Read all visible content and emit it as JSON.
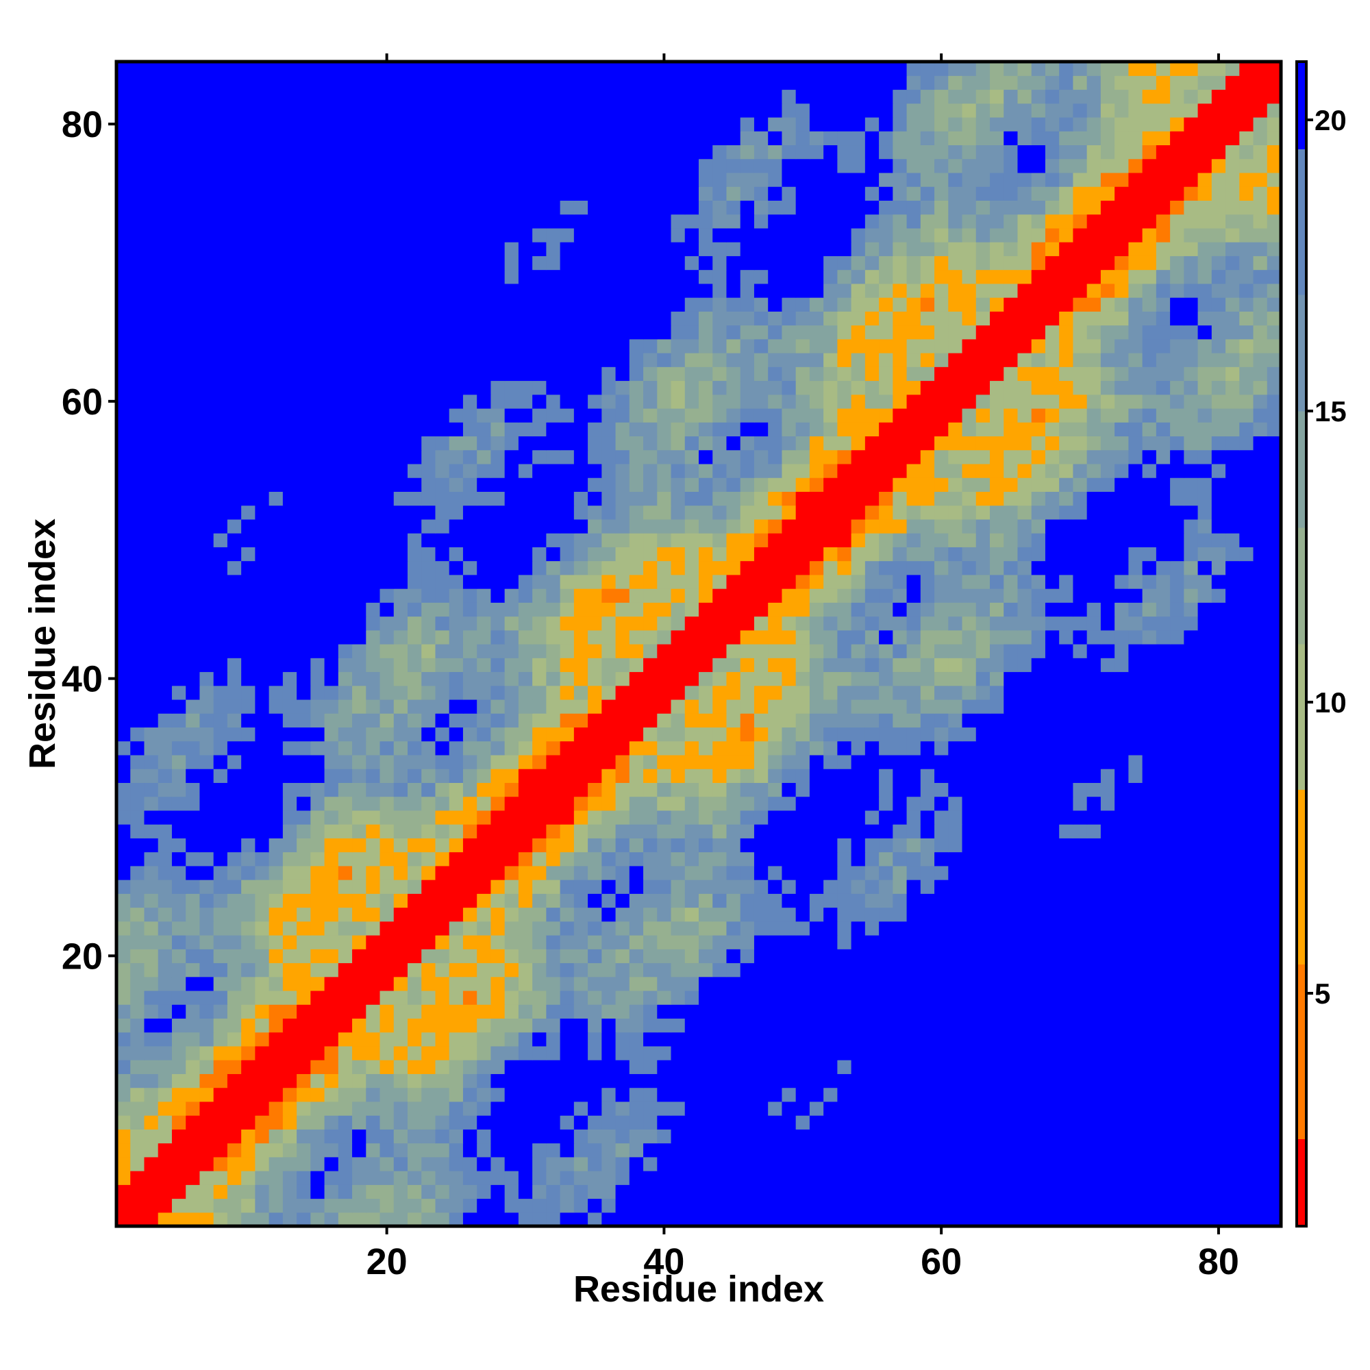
{
  "chart_data": {
    "type": "heatmap",
    "title": "",
    "xlabel": "Residue index",
    "ylabel": "Residue index",
    "n_residues": 84,
    "xlim": [
      1,
      84
    ],
    "ylim": [
      1,
      84
    ],
    "x_ticks": [
      20,
      40,
      60,
      80
    ],
    "y_ticks": [
      20,
      40,
      60,
      80
    ],
    "colorbar": {
      "range": [
        1,
        21
      ],
      "ticks": [
        5,
        10,
        15,
        20
      ],
      "placement": "right"
    },
    "color_scale": [
      {
        "max": 2.5,
        "color": "#ff0000"
      },
      {
        "max": 5.5,
        "color": "#ff7a00"
      },
      {
        "max": 8.5,
        "color": "#ffa500"
      },
      {
        "max": 11.0,
        "color": "#a8bb84"
      },
      {
        "max": 13.0,
        "color": "#96b090"
      },
      {
        "max": 15.0,
        "color": "#84a4a0"
      },
      {
        "max": 17.0,
        "color": "#7294b2"
      },
      {
        "max": 19.5,
        "color": "#6287bd"
      },
      {
        "max": 99,
        "color": "#0000ff"
      }
    ],
    "matrix_description": "symmetric residue-residue distance map; diagonal ~0, distance grows with |i-j| modulated by ~20-residue periodic blocks; values above 20 shown blue",
    "base_cutoff": 20.5
  }
}
